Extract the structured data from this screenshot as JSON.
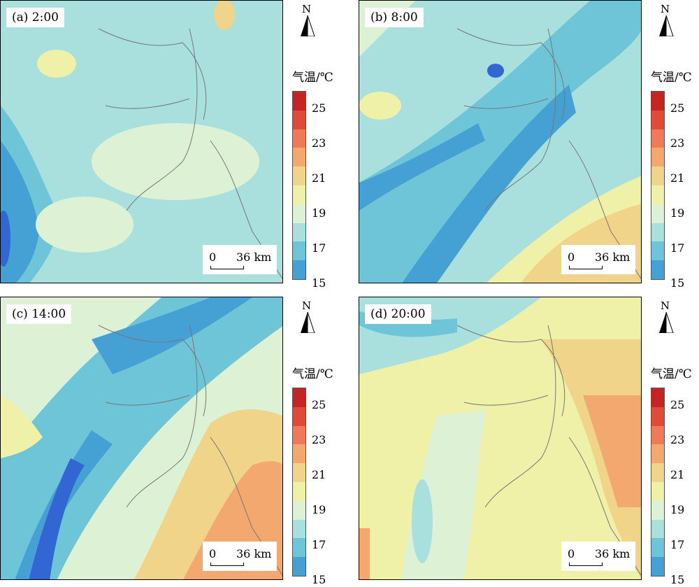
{
  "figure": {
    "panels": [
      {
        "label": "(a) 2:00",
        "time": "2:00",
        "theme": "a"
      },
      {
        "label": "(b) 8:00",
        "time": "8:00",
        "theme": "b"
      },
      {
        "label": "(c) 14:00",
        "time": "14:00",
        "theme": "c"
      },
      {
        "label": "(d) 20:00",
        "time": "20:00",
        "theme": "d"
      }
    ],
    "north_label": "N",
    "scale_bar": {
      "zero": "0",
      "distance": "36 km"
    },
    "legend": {
      "title": "气温/℃",
      "ticks": [
        "25",
        "23",
        "21",
        "19",
        "17",
        "15"
      ],
      "colors": [
        "#c42424",
        "#df4b3b",
        "#ee7a59",
        "#f3a870",
        "#efd48a",
        "#f0f1a8",
        "#ddf2d4",
        "#a9e0de",
        "#6ec5d8",
        "#45a0d3",
        "#3267d3"
      ]
    }
  }
}
